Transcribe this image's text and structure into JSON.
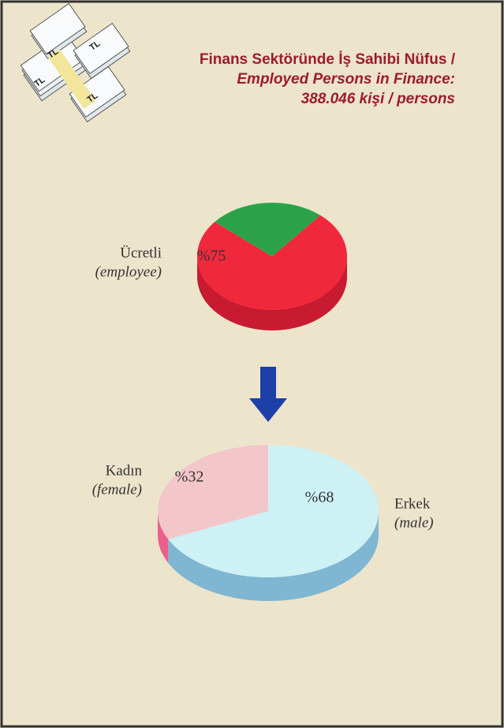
{
  "title": [
    "Finans Sektöründe İş Sahibi Nüfus /",
    "Employed Persons in Finance:",
    "388.046 kişi / persons"
  ],
  "icon": {
    "labels": [
      "TL",
      "TL",
      "TL",
      "TL"
    ]
  },
  "chart_data": [
    {
      "type": "pie",
      "categories": [
        "Ücretli",
        null
      ],
      "category_translations": [
        "(employee)",
        null
      ],
      "values": [
        75,
        25
      ],
      "value_labels": [
        "%75",
        null
      ],
      "colors": [
        "#f0283c",
        "#2ba24a"
      ],
      "side_colors": [
        "#c81a30",
        "#16704a"
      ]
    },
    {
      "type": "pie",
      "categories": [
        "Kadın",
        "Erkek"
      ],
      "category_translations": [
        "(female)",
        "(male)"
      ],
      "values": [
        32,
        68
      ],
      "value_labels": [
        "%32",
        "%68"
      ],
      "colors": [
        "#f3c6ca",
        "#cdf1f5"
      ],
      "side_colors": [
        "#e9608c",
        "#7fb6d2"
      ]
    }
  ]
}
